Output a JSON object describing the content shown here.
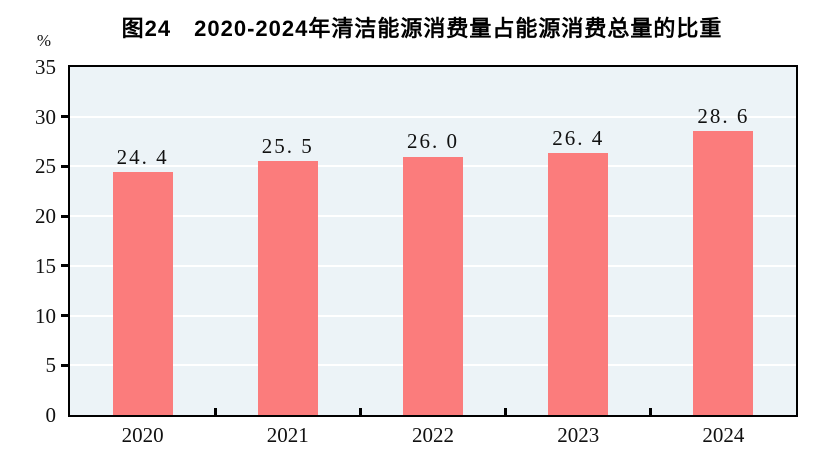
{
  "title": "图24　2020-2024年清洁能源消费量占能源消费总量的比重",
  "y_axis_unit": "%",
  "colors": {
    "bar": "#FB7C7C",
    "plot_background": "#ECF3F7",
    "gridline": "#FFFFFF",
    "axis": "#000000",
    "text": "#111111"
  },
  "chart_data": {
    "type": "bar",
    "title": "图24　2020-2024年清洁能源消费量占能源消费总量的比重",
    "categories": [
      "2020",
      "2021",
      "2022",
      "2023",
      "2024"
    ],
    "values": [
      24.4,
      25.5,
      26.0,
      26.4,
      28.6
    ],
    "value_labels": [
      "24. 4",
      "25. 5",
      "26. 0",
      "26. 4",
      "28. 6"
    ],
    "xlabel": "",
    "ylabel": "%",
    "ylim": [
      0,
      35
    ],
    "yticks": [
      0,
      5,
      10,
      15,
      20,
      25,
      30,
      35
    ],
    "grid": true,
    "legend_position": "none"
  }
}
